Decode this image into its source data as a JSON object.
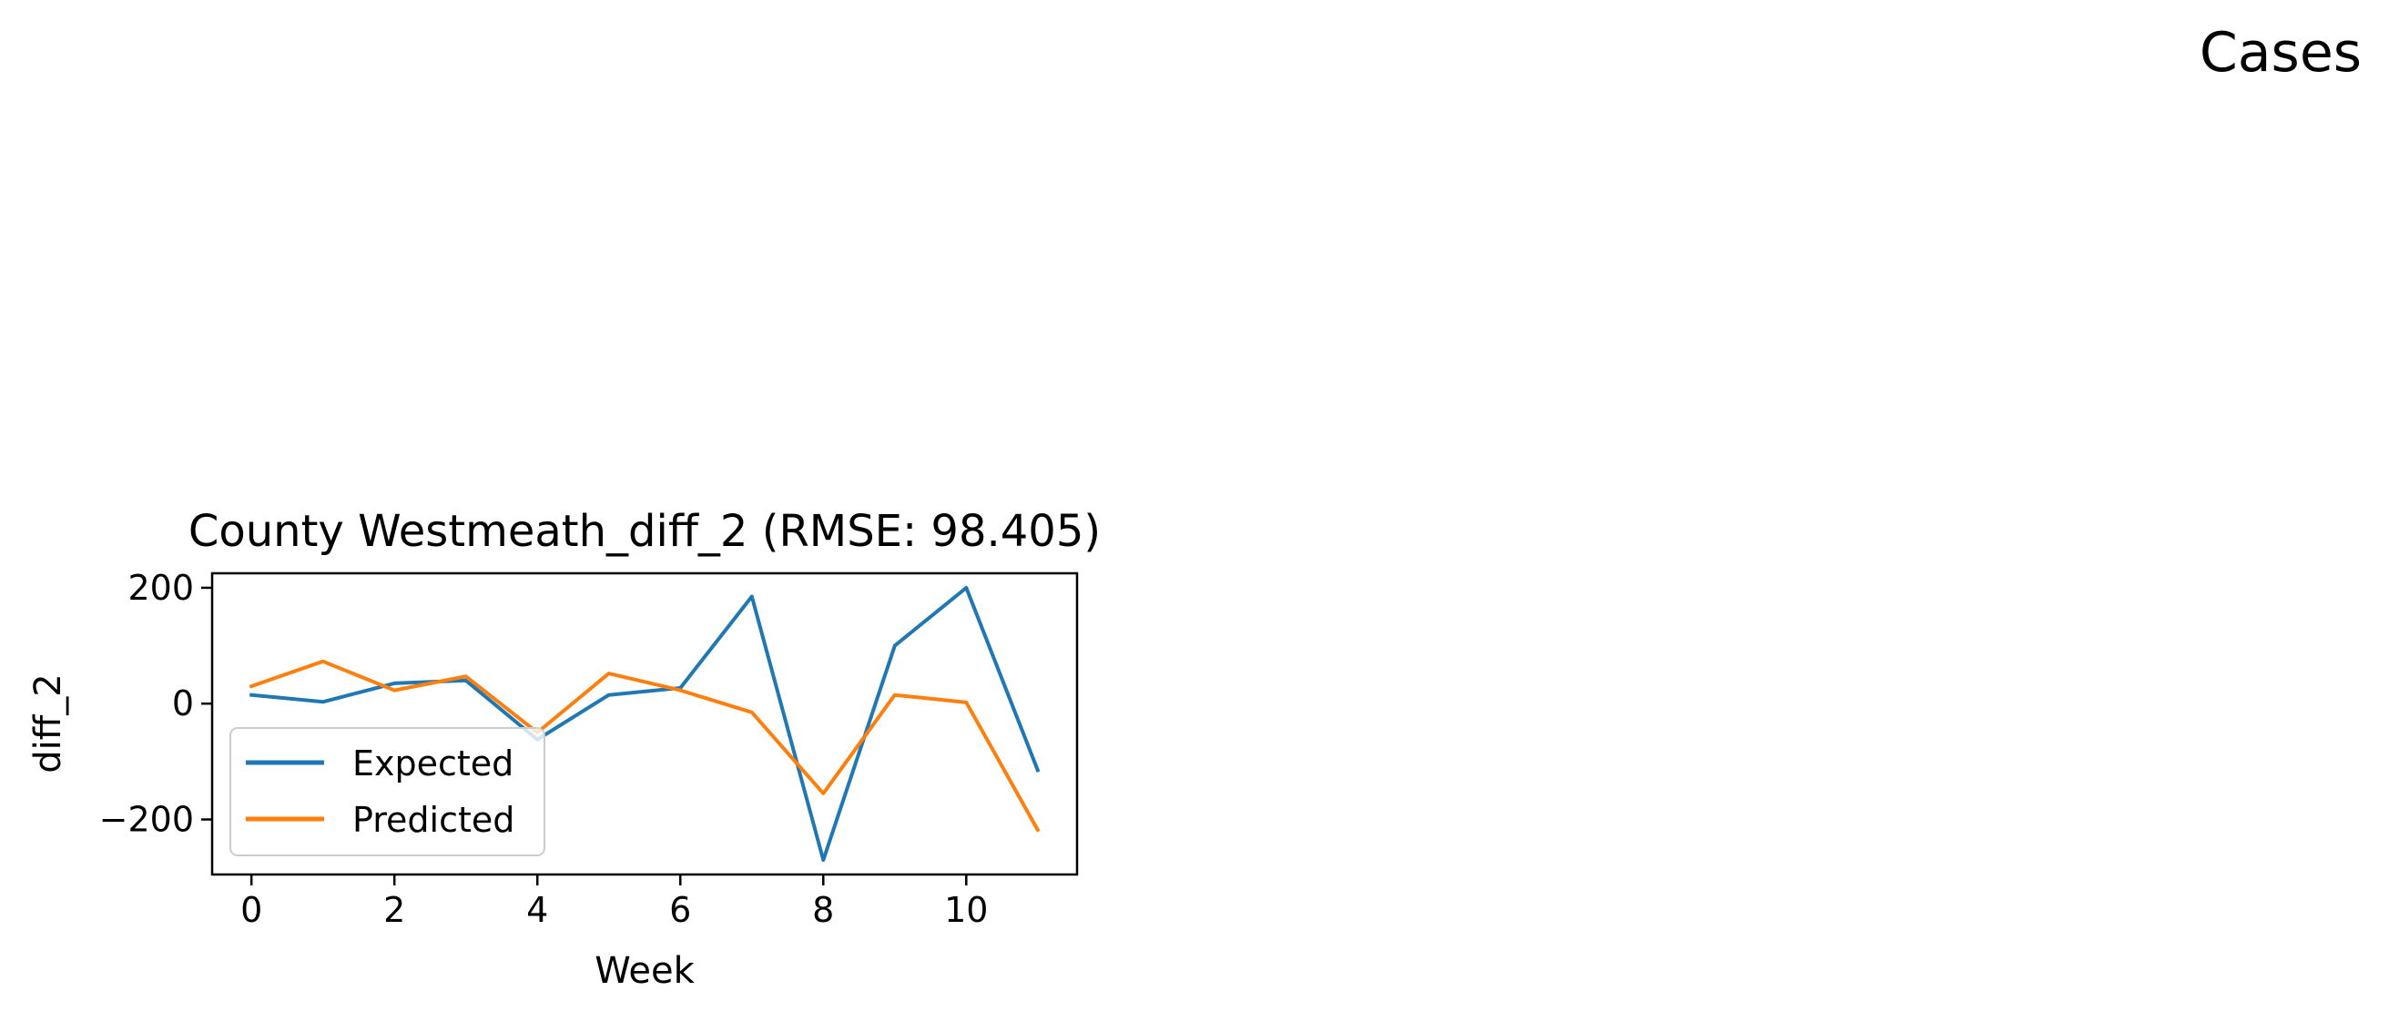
{
  "figure": {
    "suptitle": "Cases"
  },
  "chart_data": {
    "type": "line",
    "title": "County Westmeath_diff_2 (RMSE: 98.405)",
    "xlabel": "Week",
    "ylabel": "diff_2",
    "x": [
      0,
      1,
      2,
      3,
      4,
      5,
      6,
      7,
      8,
      9,
      10,
      11
    ],
    "xlim": [
      -0.55,
      11.55
    ],
    "ylim": [
      -295,
      225
    ],
    "xticks": [
      0,
      2,
      4,
      6,
      8,
      10
    ],
    "xtick_labels": [
      "0",
      "2",
      "4",
      "6",
      "8",
      "10"
    ],
    "yticks": [
      -200,
      0,
      200
    ],
    "ytick_labels": [
      "−200",
      "0",
      "200"
    ],
    "grid": false,
    "legend_position": "lower-left",
    "series": [
      {
        "name": "Expected",
        "color": "#1f77b4",
        "values": [
          15,
          3,
          35,
          40,
          -62,
          15,
          27,
          185,
          -270,
          100,
          200,
          -115
        ]
      },
      {
        "name": "Predicted",
        "color": "#ff7f0e",
        "values": [
          30,
          73,
          23,
          47,
          -50,
          52,
          23,
          -15,
          -155,
          15,
          2,
          -218
        ]
      }
    ]
  }
}
